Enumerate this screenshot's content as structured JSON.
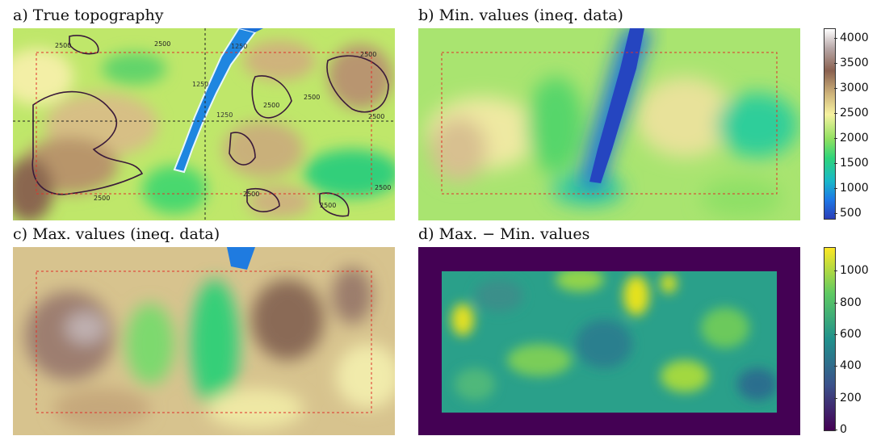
{
  "panels": {
    "a": {
      "title": "a) True topography"
    },
    "b": {
      "title": "b) Min. values (ineq. data)"
    },
    "c": {
      "title": "c) Max. values (ineq. data)"
    },
    "d": {
      "title": "d) Max. − Min. values"
    }
  },
  "contour_labels": [
    "2500",
    "2500",
    "2500",
    "2500",
    "2500",
    "2500",
    "2500",
    "2500",
    "2500",
    "2500",
    "1250",
    "1250",
    "1250"
  ],
  "colorbars": {
    "elevation": {
      "ticks": [
        "4000",
        "3500",
        "3000",
        "2500",
        "2000",
        "1500",
        "1000",
        "500"
      ],
      "min": 400,
      "max": 4200,
      "colors": [
        "#2b3fb8",
        "#1e78e6",
        "#19b8c8",
        "#2fd47a",
        "#8fe060",
        "#f6f2a0",
        "#cdb27a",
        "#8a6150",
        "#b8a8a8",
        "#ffffff"
      ]
    },
    "difference": {
      "ticks": [
        "1000",
        "800",
        "600",
        "400",
        "200",
        "0"
      ],
      "min": 0,
      "max": 1150,
      "colors": [
        "#440154",
        "#3b528b",
        "#21918c",
        "#5ec962",
        "#fde725"
      ]
    }
  },
  "chart_data": [
    {
      "type": "heatmap",
      "title": "a) True topography",
      "contours": [
        1250,
        2500
      ],
      "colorscale": "elevation"
    },
    {
      "type": "heatmap",
      "title": "b) Min. values (ineq. data)",
      "colorscale": "elevation",
      "vmin": 500,
      "vmax": 4200
    },
    {
      "type": "heatmap",
      "title": "c) Max. values (ineq. data)",
      "colorscale": "elevation"
    },
    {
      "type": "heatmap",
      "title": "d) Max. − Min. values",
      "colorscale": "viridis",
      "vmin": 0,
      "vmax": 1150
    }
  ]
}
